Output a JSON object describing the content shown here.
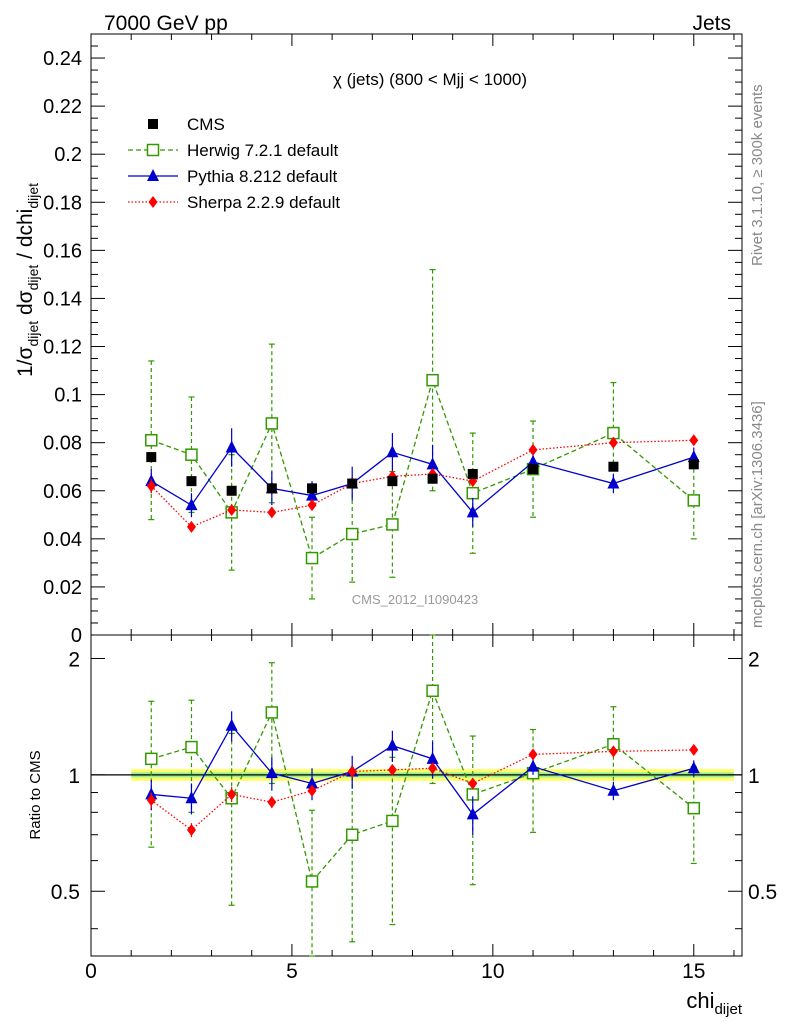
{
  "header": {
    "left": "7000 GeV pp",
    "right": "Jets",
    "side_top": "Rivet 3.1.10, ≥ 300k events",
    "side_bottom": "mcplots.cern.ch [arXiv:1306.3436]",
    "watermark": "CMS_2012_I1090423"
  },
  "chart_data": {
    "type": "line",
    "title": "χ (jets) (800 < Mjj < 1000)",
    "ylabel_main": "1/σ_dijet dσ_dijet / dchi_dijet",
    "ylabel_ratio": "Ratio to CMS",
    "xlabel": "chi_dijet",
    "xlim": [
      0,
      16.2
    ],
    "ylim_main": [
      0,
      0.25
    ],
    "ylim_ratio": [
      0.34,
      2.3
    ],
    "ratio_scale": "log",
    "x_ticks": [
      0,
      5,
      10,
      15
    ],
    "y_ticks_main": [
      "0",
      "0.02",
      "0.04",
      "0.06",
      "0.08",
      "0.1",
      "0.12",
      "0.14",
      "0.16",
      "0.18",
      "0.2",
      "0.22",
      "0.24"
    ],
    "y_ticks_ratio": [
      "0.5",
      "1",
      "2"
    ],
    "legend_position": "top-left",
    "x": [
      1.5,
      2.5,
      3.5,
      4.5,
      5.5,
      6.5,
      7.5,
      8.5,
      9.5,
      11,
      13,
      15
    ],
    "xerr_low": [
      0.5,
      0.5,
      0.5,
      0.5,
      0.5,
      0.5,
      0.5,
      0.5,
      0.5,
      1,
      1,
      1
    ],
    "xerr_high": [
      0.5,
      0.5,
      0.5,
      0.5,
      0.5,
      0.5,
      0.5,
      0.5,
      0.5,
      1,
      1,
      1
    ],
    "series": [
      {
        "name": "CMS",
        "color": "#000000",
        "marker": "square",
        "values": [
          0.074,
          0.064,
          0.06,
          0.061,
          0.061,
          0.063,
          0.064,
          0.065,
          0.067,
          0.069,
          0.07,
          0.071
        ],
        "err": [
          0.002,
          0.002,
          0.002,
          0.002,
          0.002,
          0.002,
          0.002,
          0.002,
          0.002,
          0.002,
          0.002,
          0.002
        ],
        "ratio": [
          1,
          1,
          1,
          1,
          1,
          1,
          1,
          1,
          1,
          1,
          1,
          1
        ]
      },
      {
        "name": "Herwig 7.2.1 default",
        "color": "#339900",
        "marker": "open-square",
        "dash": "5,3",
        "values": [
          0.081,
          0.075,
          0.051,
          0.088,
          0.032,
          0.042,
          0.046,
          0.106,
          0.059,
          0.069,
          0.084,
          0.056
        ],
        "err": [
          0.033,
          0.024,
          0.024,
          0.033,
          0.017,
          0.02,
          0.022,
          0.046,
          0.025,
          0.02,
          0.021,
          0.016
        ],
        "ratio": [
          1.1,
          1.18,
          0.87,
          1.45,
          0.53,
          0.7,
          0.76,
          1.65,
          0.89,
          1.01,
          1.2,
          0.82
        ],
        "ratio_err": [
          0.45,
          0.38,
          0.41,
          0.5,
          0.28,
          0.33,
          0.35,
          0.7,
          0.37,
          0.3,
          0.3,
          0.23
        ]
      },
      {
        "name": "Pythia 8.212 default",
        "color": "#0000cc",
        "marker": "triangle",
        "dash": "",
        "values": [
          0.064,
          0.054,
          0.078,
          0.061,
          0.058,
          0.063,
          0.076,
          0.071,
          0.051,
          0.072,
          0.063,
          0.074
        ],
        "err": [
          0.005,
          0.005,
          0.008,
          0.007,
          0.006,
          0.007,
          0.008,
          0.008,
          0.006,
          0.004,
          0.004,
          0.004
        ],
        "ratio": [
          0.89,
          0.87,
          1.34,
          1.01,
          0.95,
          1.02,
          1.19,
          1.1,
          0.79,
          1.05,
          0.91,
          1.04
        ],
        "ratio_err": [
          0.08,
          0.08,
          0.12,
          0.1,
          0.09,
          0.1,
          0.11,
          0.12,
          0.09,
          0.05,
          0.05,
          0.05
        ]
      },
      {
        "name": "Sherpa 2.2.9 default",
        "color": "#ff0000",
        "marker": "diamond",
        "dash": "1.5,2",
        "values": [
          0.062,
          0.045,
          0.052,
          0.051,
          0.054,
          0.063,
          0.066,
          0.067,
          0.064,
          0.077,
          0.08,
          0.081
        ],
        "err": [
          0.003,
          0.002,
          0.002,
          0.002,
          0.002,
          0.002,
          0.002,
          0.002,
          0.002,
          0.002,
          0.002,
          0.002
        ],
        "ratio": [
          0.86,
          0.72,
          0.89,
          0.85,
          0.91,
          1.02,
          1.03,
          1.04,
          0.95,
          1.13,
          1.15,
          1.16
        ],
        "ratio_err": [
          0.04,
          0.03,
          0.04,
          0.03,
          0.03,
          0.03,
          0.03,
          0.03,
          0.03,
          0.03,
          0.03,
          0.03
        ]
      }
    ]
  }
}
